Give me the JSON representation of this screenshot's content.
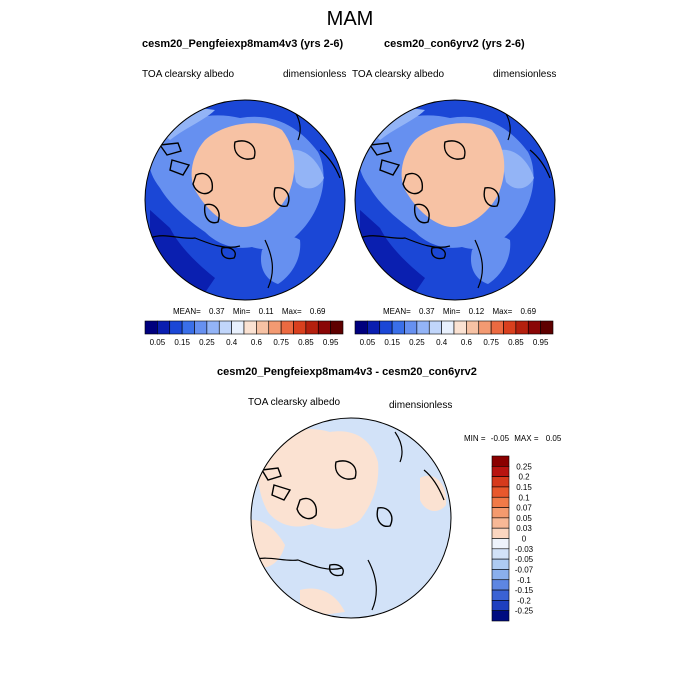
{
  "figure": {
    "title": "MAM"
  },
  "panels": [
    {
      "title": "cesm20_Pengfeiexp8mam4v3 (yrs 2-6)",
      "left_label": "TOA clearsky albedo",
      "right_label": "dimensionless",
      "stats": {
        "mean_label": "MEAN=",
        "mean": "0.37",
        "min_label": "Min=",
        "min": "0.11",
        "max_label": "Max=",
        "max": "0.69"
      }
    },
    {
      "title": "cesm20_con6yrv2 (yrs 2-6)",
      "left_label": "TOA clearsky albedo",
      "right_label": "dimensionless",
      "stats": {
        "mean_label": "MEAN=",
        "mean": "0.37",
        "min_label": "Min=",
        "min": "0.12",
        "max_label": "Max=",
        "max": "0.69"
      }
    },
    {
      "title": "cesm20_Pengfeiexp8mam4v3 - cesm20_con6yrv2",
      "left_label": "TOA clearsky albedo",
      "right_label": "dimensionless",
      "stats": {
        "min_label": "MIN =",
        "min": "-0.05",
        "max_label": "MAX =",
        "max": "0.05"
      }
    }
  ],
  "chart_data": [
    {
      "type": "heatmap",
      "projection": "north-polar-stereographic",
      "title": "cesm20_Pengfeiexp8mam4v3 (yrs 2-6)",
      "variable": "TOA clearsky albedo",
      "units": "dimensionless",
      "mean": 0.37,
      "min": 0.11,
      "max": 0.69,
      "colorbar": {
        "orientation": "horizontal",
        "levels": [
          0.05,
          0.1,
          0.15,
          0.2,
          0.25,
          0.3,
          0.4,
          0.5,
          0.6,
          0.7,
          0.75,
          0.8,
          0.85,
          0.9,
          0.95
        ],
        "tick_labels": [
          "0.05",
          "0.15",
          "0.25",
          "0.4",
          "0.6",
          "0.75",
          "0.85",
          "0.95"
        ],
        "colors": [
          "#00007e",
          "#0a1fb0",
          "#1b47d6",
          "#3a6fe8",
          "#6690f0",
          "#93b4f6",
          "#c1d6fb",
          "#e8f0fd",
          "#fbe2d2",
          "#f7c2a4",
          "#f39a72",
          "#ec6a41",
          "#d9401e",
          "#b5200e",
          "#8a0606",
          "#5e0000"
        ]
      }
    },
    {
      "type": "heatmap",
      "projection": "north-polar-stereographic",
      "title": "cesm20_con6yrv2 (yrs 2-6)",
      "variable": "TOA clearsky albedo",
      "units": "dimensionless",
      "mean": 0.37,
      "min": 0.12,
      "max": 0.69,
      "colorbar": {
        "orientation": "horizontal",
        "levels": [
          0.05,
          0.1,
          0.15,
          0.2,
          0.25,
          0.3,
          0.4,
          0.5,
          0.6,
          0.7,
          0.75,
          0.8,
          0.85,
          0.9,
          0.95
        ],
        "tick_labels": [
          "0.05",
          "0.15",
          "0.25",
          "0.4",
          "0.6",
          "0.75",
          "0.85",
          "0.95"
        ],
        "colors": [
          "#00007e",
          "#0a1fb0",
          "#1b47d6",
          "#3a6fe8",
          "#6690f0",
          "#93b4f6",
          "#c1d6fb",
          "#e8f0fd",
          "#fbe2d2",
          "#f7c2a4",
          "#f39a72",
          "#ec6a41",
          "#d9401e",
          "#b5200e",
          "#8a0606",
          "#5e0000"
        ]
      }
    },
    {
      "type": "heatmap",
      "projection": "north-polar-stereographic",
      "title": "cesm20_Pengfeiexp8mam4v3 - cesm20_con6yrv2",
      "variable": "TOA clearsky albedo",
      "units": "dimensionless",
      "min": -0.05,
      "max": 0.05,
      "colorbar": {
        "orientation": "vertical",
        "tick_labels": [
          "0.25",
          "0.2",
          "0.15",
          "0.1",
          "0.07",
          "0.05",
          "0.03",
          "0",
          "-0.03",
          "-0.05",
          "-0.07",
          "-0.1",
          "-0.15",
          "-0.2",
          "-0.25"
        ],
        "colors": [
          "#8a0000",
          "#b81410",
          "#d63a1c",
          "#e8582c",
          "#f07a48",
          "#f49a6e",
          "#f8b896",
          "#fbd6c0",
          "#eef3fb",
          "#d2e2f8",
          "#aecbf2",
          "#8aafec",
          "#5d86e2",
          "#3a62d4",
          "#1e3fbf",
          "#000c80"
        ]
      }
    }
  ]
}
